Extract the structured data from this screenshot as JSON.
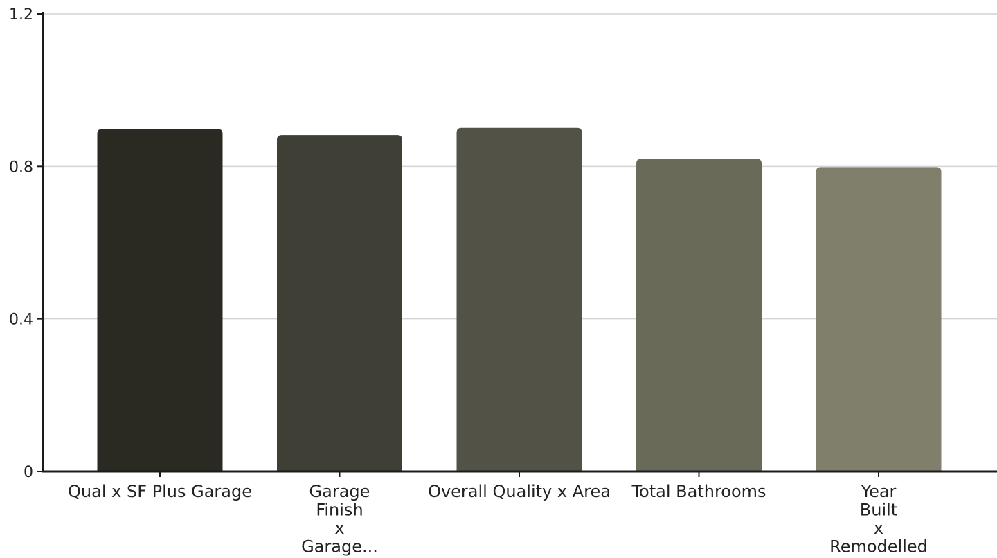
{
  "chart_data": {
    "type": "bar",
    "title": "",
    "xlabel": "",
    "ylabel": "",
    "ylim": [
      0,
      1.2
    ],
    "yticks": [
      0,
      0.4,
      0.8,
      1.2
    ],
    "ytick_labels": [
      "0",
      "0.4",
      "0.8",
      "1.2"
    ],
    "grid": true,
    "categories": [
      "Qual x SF Plus Garage",
      "Garage Finish x Garage...",
      "Overall Quality x Area",
      "Total Bathrooms",
      "Year Built x Remodelled"
    ],
    "category_label_lines": [
      [
        "Qual x SF Plus Garage"
      ],
      [
        "Garage",
        "Finish",
        "x",
        "Garage..."
      ],
      [
        "Overall Quality x Area"
      ],
      [
        "Total Bathrooms"
      ],
      [
        "Year",
        "Built",
        "x",
        "Remodelled"
      ]
    ],
    "values": [
      0.898,
      0.882,
      0.901,
      0.82,
      0.798
    ],
    "colors": [
      "#2b2a22",
      "#3f3f36",
      "#525346",
      "#696a58",
      "#7f7f6b"
    ]
  }
}
